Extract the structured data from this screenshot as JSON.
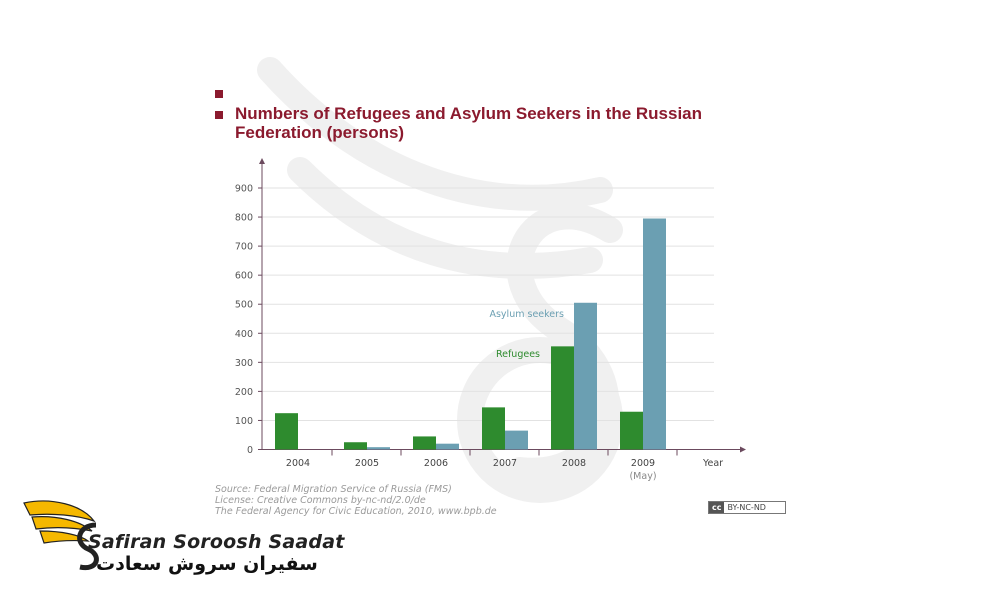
{
  "chart_data": {
    "type": "bar",
    "title": "Numbers of Refugees and Asylum Seekers in the Russian Federation (persons)",
    "xlabel": "Year",
    "ylabel": "",
    "ylim": [
      0,
      900
    ],
    "yticks": [
      0,
      100,
      200,
      300,
      400,
      500,
      600,
      700,
      800,
      900
    ],
    "categories": [
      "2004",
      "2005",
      "2006",
      "2007",
      "2008",
      "2009"
    ],
    "category_sublabels": [
      "",
      "",
      "",
      "",
      "",
      "(May)"
    ],
    "series": [
      {
        "name": "Refugees",
        "color": "#2e8b2e",
        "values": [
          125,
          25,
          45,
          145,
          355,
          130
        ]
      },
      {
        "name": "Asylum seekers",
        "color": "#6b9fb2",
        "values": [
          0,
          8,
          20,
          65,
          505,
          795
        ]
      }
    ],
    "grid": true,
    "legend": "inline labels"
  },
  "source_lines": [
    "Source: Federal Migration Service of Russia (FMS)",
    "License: Creative Commons by-nc-nd/2.0/de",
    "The Federal Agency for Civic Education, 2010, www.bpb.de"
  ],
  "license_badge": {
    "mark": "cc",
    "text": "BY-NC-ND"
  },
  "brand": {
    "name_en": "Safiran Soroosh Saadat",
    "name_fa": "سفیران سروش سعادت",
    "logo_icon": "winged-s-logo-icon",
    "accent": "#f5b800"
  },
  "colors": {
    "title": "#8b1a2e",
    "axis": "#6b4a5e"
  }
}
